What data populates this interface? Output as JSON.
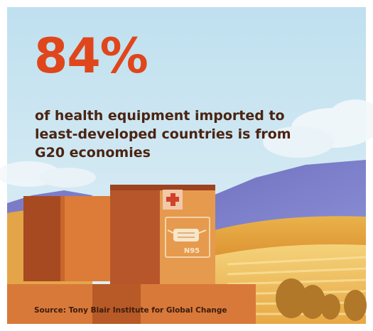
{
  "headline": {
    "stat": "84%",
    "caption": "of health equipment imported to least-developed countries is from G20 economies"
  },
  "illustration": {
    "mask_label": "N95"
  },
  "footer": {
    "source": "Source: Tony Blair Institute for Global Change"
  },
  "colors": {
    "stat": "#e0461b",
    "caption": "#4a2412",
    "sky": "#cfe6f2",
    "box": "#d9783a"
  }
}
